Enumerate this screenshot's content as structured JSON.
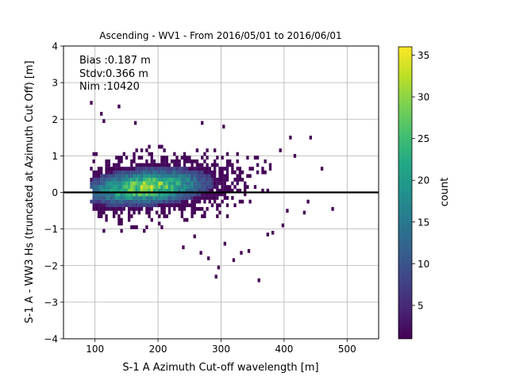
{
  "chart_data": {
    "type": "heatmap",
    "title": "Ascending - WV1 - From 2016/05/01 to 2016/06/01",
    "xlabel": "S-1 A Azimuth Cut-off wavelength [m]",
    "ylabel": "S-1 A - WW3 Hs (truncated at Azimuth Cut Off) [m]",
    "xlim": [
      50,
      550
    ],
    "ylim": [
      -4,
      4
    ],
    "x_ticks": [
      "100",
      "200",
      "300",
      "400",
      "500"
    ],
    "x_tick_values": [
      100,
      200,
      300,
      400,
      500
    ],
    "y_ticks": [
      "−4",
      "−3",
      "−2",
      "−1",
      "0",
      "1",
      "2",
      "3",
      "4"
    ],
    "y_tick_values": [
      -4,
      -3,
      -2,
      -1,
      0,
      1,
      2,
      3,
      4
    ],
    "grid": true,
    "reference_line_y": 0,
    "stats": {
      "bias": "Bias :0.187 m",
      "stdv": "Stdv:0.366 m",
      "nim": "Nim :10420"
    },
    "colorbar": {
      "label": "count",
      "colormap": "viridis",
      "range": [
        1,
        36
      ],
      "ticks": [
        "5",
        "10",
        "15",
        "20",
        "25",
        "30",
        "35"
      ],
      "tick_values": [
        5,
        10,
        15,
        20,
        25,
        30,
        35
      ]
    },
    "bin_size": {
      "x": 4,
      "y": 0.1
    },
    "density_peak": {
      "x": 180,
      "y": 0.1,
      "count": 36
    },
    "outliers": [
      {
        "x": 92,
        "y": 2.4
      },
      {
        "x": 108,
        "y": 2.1
      },
      {
        "x": 136,
        "y": 2.3
      },
      {
        "x": 112,
        "y": 1.9
      },
      {
        "x": 162,
        "y": 1.85
      },
      {
        "x": 268,
        "y": 1.85
      },
      {
        "x": 302,
        "y": 1.75
      },
      {
        "x": 440,
        "y": 1.45
      },
      {
        "x": 408,
        "y": 1.45
      },
      {
        "x": 458,
        "y": 0.6
      },
      {
        "x": 415,
        "y": 0.95
      },
      {
        "x": 392,
        "y": 1.1
      },
      {
        "x": 238,
        "y": -1.55
      },
      {
        "x": 266,
        "y": -1.7
      },
      {
        "x": 278,
        "y": -1.85
      },
      {
        "x": 318,
        "y": -1.9
      },
      {
        "x": 342,
        "y": -1.65
      },
      {
        "x": 372,
        "y": -1.2
      },
      {
        "x": 358,
        "y": -2.45
      },
      {
        "x": 290,
        "y": -2.35
      },
      {
        "x": 294,
        "y": -2.1
      },
      {
        "x": 430,
        "y": -0.6
      },
      {
        "x": 475,
        "y": -0.5
      },
      {
        "x": 436,
        "y": -0.3
      },
      {
        "x": 403,
        "y": -0.55
      },
      {
        "x": 396,
        "y": -0.95
      },
      {
        "x": 380,
        "y": -1.15
      },
      {
        "x": 330,
        "y": -1.7
      },
      {
        "x": 304,
        "y": -1.45
      },
      {
        "x": 256,
        "y": -1.25
      }
    ]
  }
}
